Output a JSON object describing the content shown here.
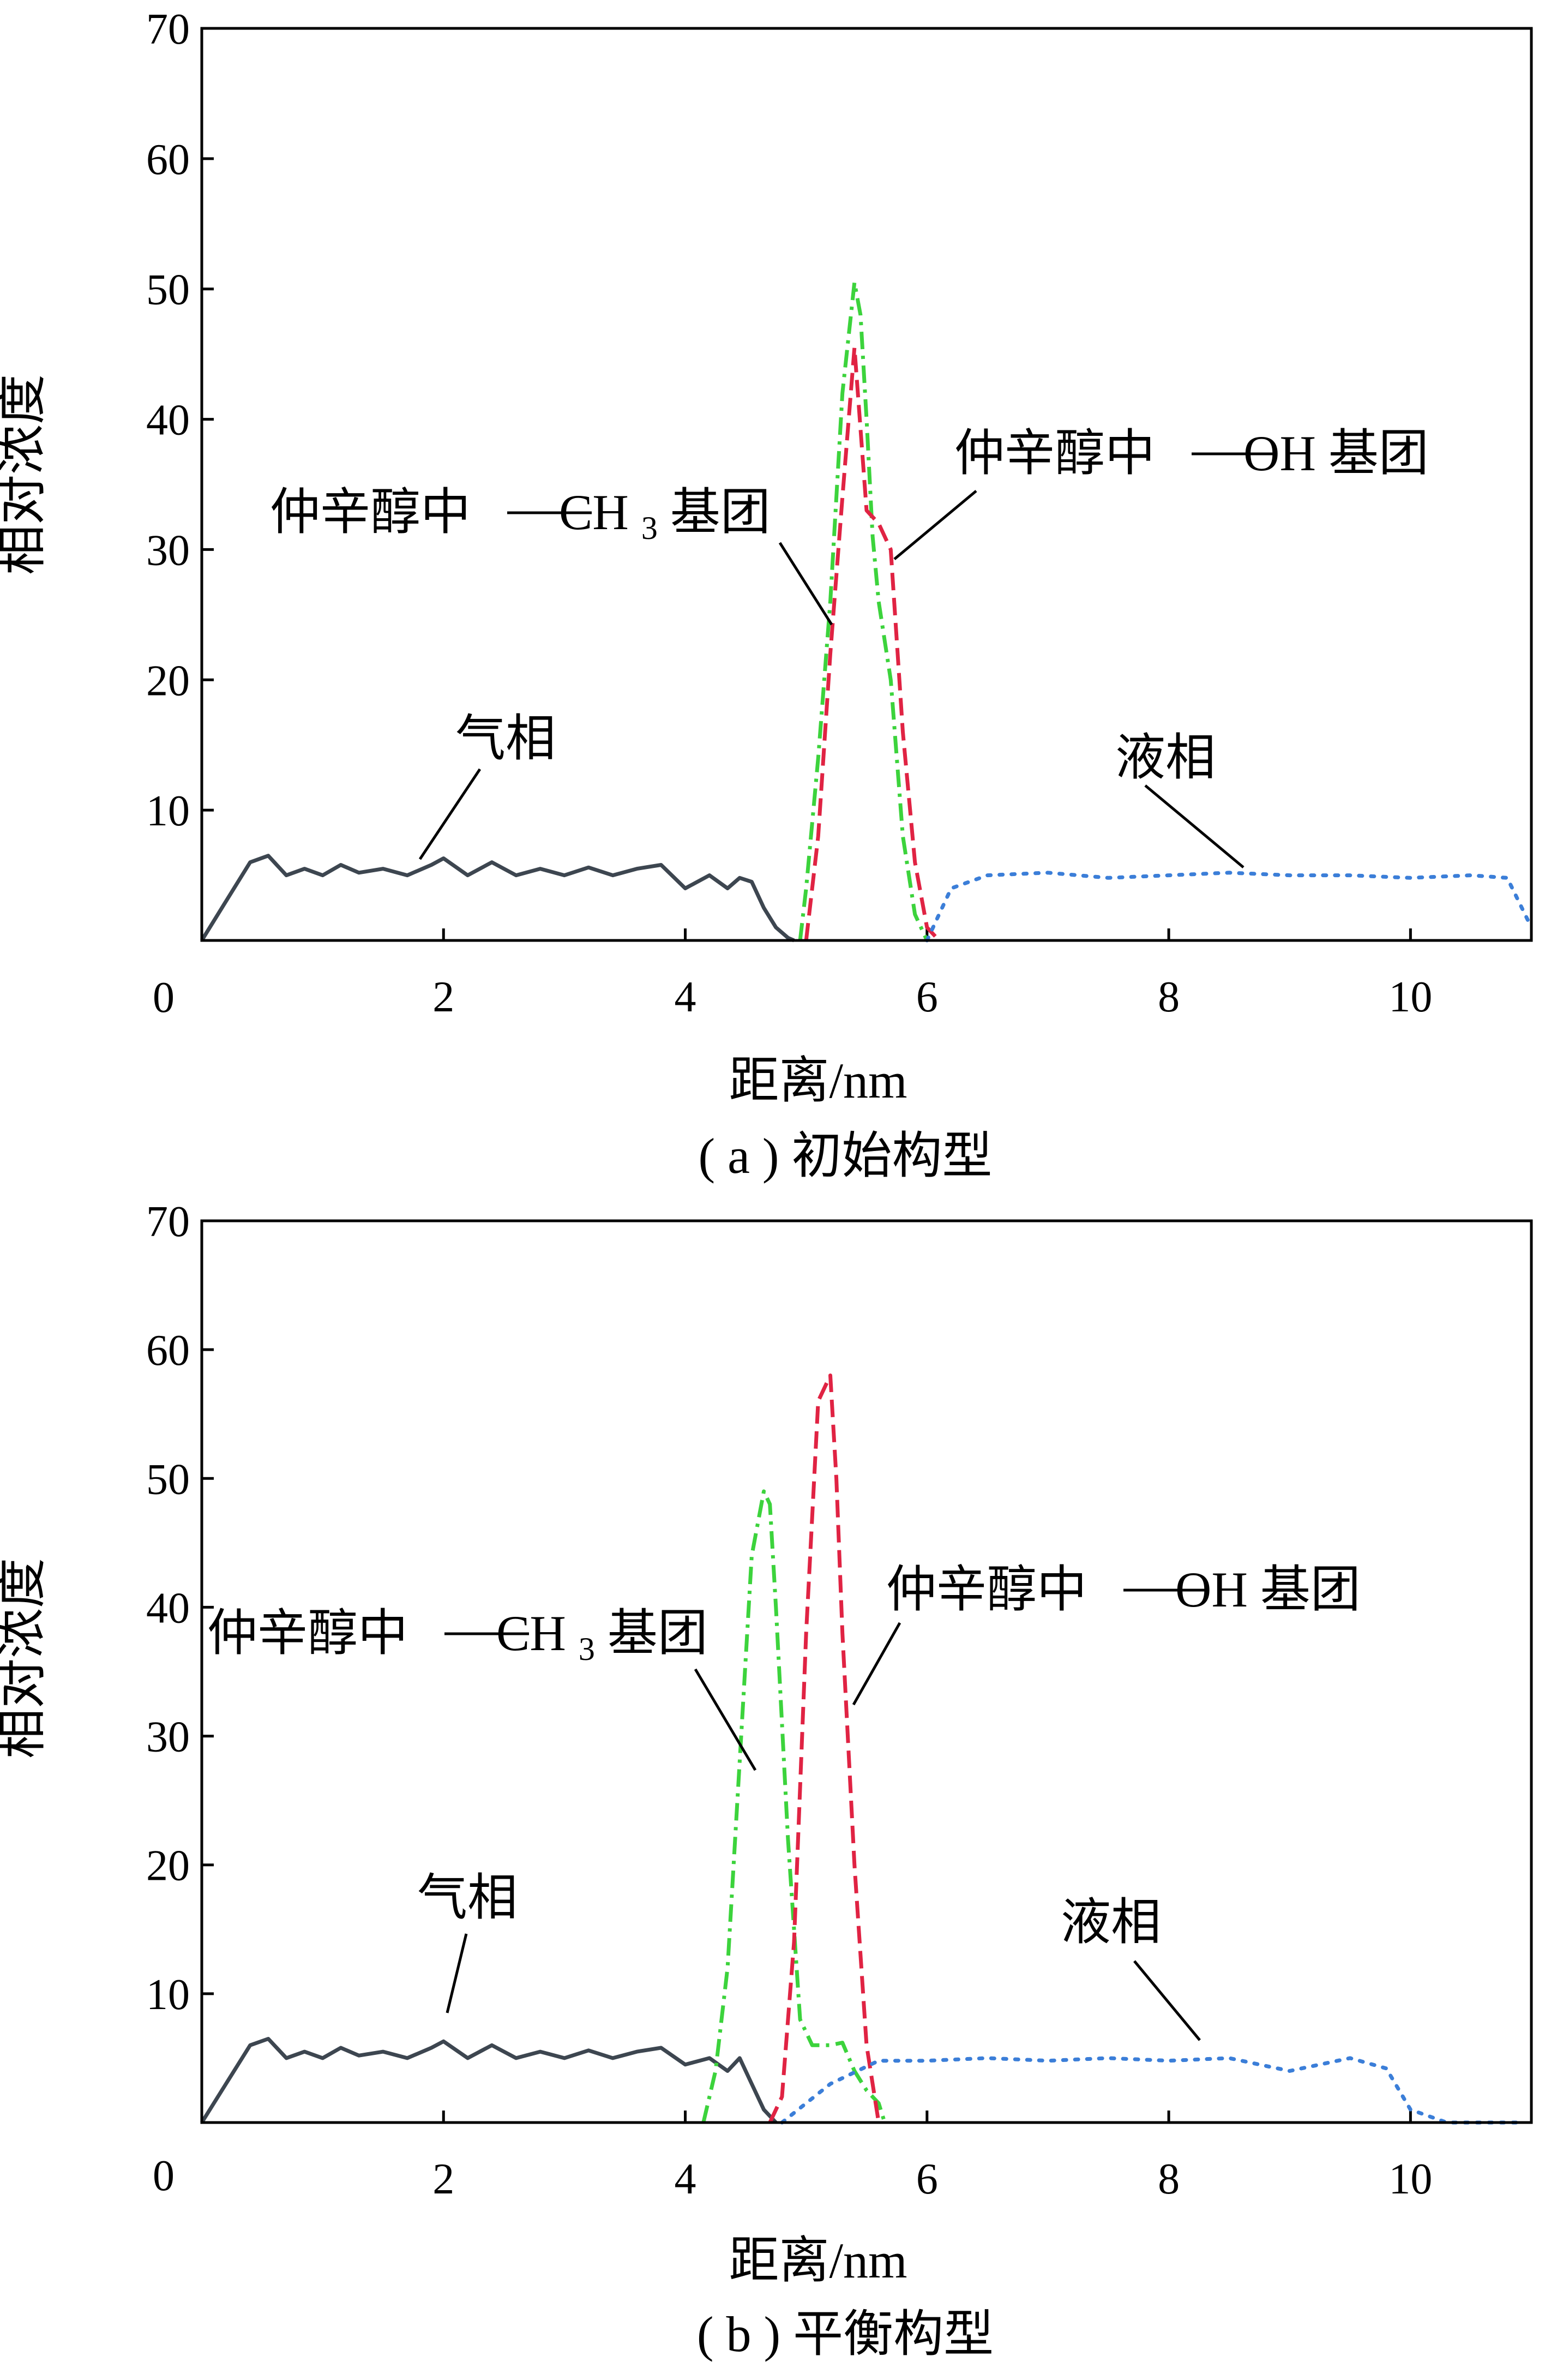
{
  "chart_data": [
    {
      "type": "line",
      "caption": "( a ) 初始构型",
      "xlabel": "距离/nm",
      "ylabel": "相对浓度",
      "xlim": [
        0,
        11
      ],
      "ylim": [
        0,
        70
      ],
      "xticks": [
        0,
        2,
        4,
        6,
        8,
        10
      ],
      "yticks": [
        10,
        20,
        30,
        40,
        50,
        60,
        70
      ],
      "y_zero_label": "0",
      "series": [
        {
          "color": "#3d4650",
          "style": "solid",
          "x": [
            0.0,
            0.2,
            0.4,
            0.55,
            0.7,
            0.85,
            1.0,
            1.15,
            1.3,
            1.5,
            1.7,
            1.9,
            2.0,
            2.2,
            2.4,
            2.6,
            2.8,
            3.0,
            3.2,
            3.4,
            3.6,
            3.8,
            4.0,
            4.2,
            4.35,
            4.45,
            4.55,
            4.65,
            4.75,
            4.85,
            4.9
          ],
          "y": [
            0.0,
            3.0,
            6.0,
            6.5,
            5.0,
            5.5,
            5.0,
            5.8,
            5.2,
            5.5,
            5.0,
            5.8,
            6.3,
            5.0,
            6.0,
            5.0,
            5.5,
            5.0,
            5.6,
            5.0,
            5.5,
            5.8,
            4.0,
            5.0,
            4.0,
            4.8,
            4.5,
            2.5,
            1.0,
            0.2,
            0.0
          ]
        },
        {
          "color": "#3cd33c",
          "style": "dashdot",
          "x": [
            4.95,
            5.0,
            5.1,
            5.2,
            5.3,
            5.4,
            5.45,
            5.5,
            5.55,
            5.6,
            5.7,
            5.8,
            5.9,
            6.0
          ],
          "y": [
            0.0,
            4.0,
            14.0,
            26.0,
            42.0,
            50.5,
            48.0,
            40.0,
            31.0,
            26.0,
            20.0,
            8.0,
            2.0,
            0.0
          ]
        },
        {
          "color": "#e02343",
          "style": "dashed",
          "x": [
            5.0,
            5.1,
            5.2,
            5.3,
            5.4,
            5.5,
            5.6,
            5.7,
            5.8,
            5.9,
            6.0,
            6.1
          ],
          "y": [
            0.0,
            8.0,
            22.0,
            34.0,
            45.5,
            33.0,
            32.0,
            30.0,
            16.0,
            6.0,
            1.0,
            0.0
          ]
        },
        {
          "color": "#3b7ed8",
          "style": "dotted",
          "x": [
            6.0,
            6.2,
            6.5,
            7.0,
            7.5,
            8.0,
            8.5,
            9.0,
            9.5,
            10.0,
            10.5,
            10.8,
            11.0
          ],
          "y": [
            0.0,
            4.0,
            5.0,
            5.2,
            4.8,
            5.0,
            5.2,
            5.0,
            5.0,
            4.8,
            5.0,
            4.8,
            1.0
          ]
        }
      ],
      "annotations": [
        {
          "text": "气相"
        },
        {
          "text": "液相"
        },
        {
          "text_pre": "仲辛醇中",
          "text_dash": "—",
          "text_main": "CH",
          "text_sub": "3",
          "text_post": "基团"
        },
        {
          "text_pre": "仲辛醇中",
          "text_dash": "—",
          "text_main": "OH",
          "text_post": "基团"
        }
      ]
    },
    {
      "type": "line",
      "caption": "( b ) 平衡构型",
      "xlabel": "距离/nm",
      "ylabel": "相对浓度",
      "xlim": [
        0,
        11
      ],
      "ylim": [
        0,
        70
      ],
      "xticks": [
        0,
        2,
        4,
        6,
        8,
        10
      ],
      "yticks": [
        10,
        20,
        30,
        40,
        50,
        60,
        70
      ],
      "y_zero_label": "0",
      "series": [
        {
          "color": "#3d4650",
          "style": "solid",
          "x": [
            0.0,
            0.2,
            0.4,
            0.55,
            0.7,
            0.85,
            1.0,
            1.15,
            1.3,
            1.5,
            1.7,
            1.9,
            2.0,
            2.2,
            2.4,
            2.6,
            2.8,
            3.0,
            3.2,
            3.4,
            3.6,
            3.8,
            4.0,
            4.2,
            4.35,
            4.45,
            4.55,
            4.65,
            4.75
          ],
          "y": [
            0.0,
            3.0,
            6.0,
            6.5,
            5.0,
            5.5,
            5.0,
            5.8,
            5.2,
            5.5,
            5.0,
            5.8,
            6.3,
            5.0,
            6.0,
            5.0,
            5.5,
            5.0,
            5.6,
            5.0,
            5.5,
            5.8,
            4.5,
            5.0,
            4.0,
            5.0,
            3.0,
            1.0,
            0.0
          ]
        },
        {
          "color": "#3cd33c",
          "style": "dashdot",
          "x": [
            4.15,
            4.25,
            4.35,
            4.45,
            4.55,
            4.65,
            4.7,
            4.75,
            4.85,
            4.95,
            5.05,
            5.2,
            5.3,
            5.4,
            5.5,
            5.6,
            5.65
          ],
          "y": [
            0.0,
            4.0,
            12.0,
            28.0,
            44.0,
            49.0,
            48.0,
            40.0,
            22.0,
            8.0,
            6.0,
            6.0,
            6.2,
            4.0,
            2.5,
            1.5,
            0.0
          ]
        },
        {
          "color": "#e02343",
          "style": "dashed",
          "x": [
            4.7,
            4.8,
            4.9,
            5.0,
            5.1,
            5.2,
            5.25,
            5.3,
            5.4,
            5.5,
            5.6
          ],
          "y": [
            0.0,
            2.0,
            14.0,
            38.0,
            56.0,
            58.0,
            50.0,
            38.0,
            20.0,
            6.0,
            0.0
          ]
        },
        {
          "color": "#3b7ed8",
          "style": "dotted",
          "x": [
            4.8,
            5.2,
            5.6,
            6.0,
            6.5,
            7.0,
            7.5,
            8.0,
            8.5,
            9.0,
            9.5,
            9.8,
            10.0,
            10.3,
            10.6,
            10.9
          ],
          "y": [
            0.0,
            3.0,
            4.8,
            4.8,
            5.0,
            4.8,
            5.0,
            4.8,
            5.0,
            4.0,
            5.0,
            4.2,
            1.0,
            0.0,
            0.0,
            0.0
          ]
        }
      ],
      "annotations": [
        {
          "text": "气相"
        },
        {
          "text": "液相"
        },
        {
          "text_pre": "仲辛醇中",
          "text_dash": "—",
          "text_main": "CH",
          "text_sub": "3",
          "text_post": "基团"
        },
        {
          "text_pre": "仲辛醇中",
          "text_dash": "—",
          "text_main": "OH",
          "text_post": "基团"
        }
      ]
    }
  ]
}
